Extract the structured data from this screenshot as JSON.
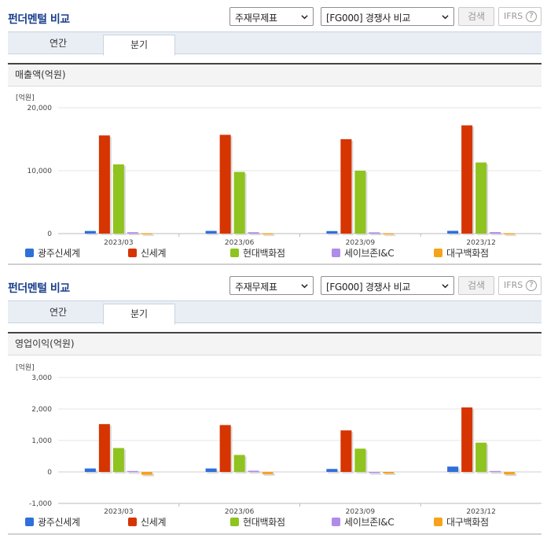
{
  "colors": {
    "title": "#1a3f8c",
    "series": [
      "#2f6fd9",
      "#d63400",
      "#8fc31f",
      "#b28bea",
      "#f6a21a"
    ]
  },
  "sections": [
    {
      "title": "펀더멘털 비교",
      "select_a": "주재무제표",
      "select_b": "[FG000] 경쟁사 비교",
      "search_label": "검색",
      "ifrs_label": "IFRS",
      "ifrs_help": "?",
      "tabs": [
        "연간",
        "분기"
      ],
      "active_tab": "분기",
      "panel_title": "매출액(억원)",
      "chart_data": {
        "type": "bar",
        "title": "매출액(억원)",
        "unit_label": "[억원]",
        "categories": [
          "2023/03",
          "2023/06",
          "2023/09",
          "2023/12"
        ],
        "ylim": [
          0,
          20000
        ],
        "yticks": [
          0,
          10000,
          20000
        ],
        "ytick_labels": [
          "0",
          "10,000",
          "20,000"
        ],
        "series": [
          {
            "name": "광주신세계",
            "values": [
              420,
              430,
              400,
              440
            ]
          },
          {
            "name": "신세계",
            "values": [
              15600,
              15700,
              15000,
              17200
            ]
          },
          {
            "name": "현대백화점",
            "values": [
              11000,
              9800,
              10000,
              11300
            ]
          },
          {
            "name": "세이브존I&C",
            "values": [
              220,
              220,
              200,
              240
            ]
          },
          {
            "name": "대구백화점",
            "values": [
              60,
              50,
              40,
              50
            ]
          }
        ]
      }
    },
    {
      "title": "펀더멘털 비교",
      "select_a": "주재무제표",
      "select_b": "[FG000] 경쟁사 비교",
      "search_label": "검색",
      "ifrs_label": "IFRS",
      "ifrs_help": "?",
      "tabs": [
        "연간",
        "분기"
      ],
      "active_tab": "분기",
      "panel_title": "영업이익(억원)",
      "chart_data": {
        "type": "bar",
        "title": "영업이익(억원)",
        "unit_label": "[억원]",
        "categories": [
          "2023/03",
          "2023/06",
          "2023/09",
          "2023/12"
        ],
        "ylim": [
          -1000,
          3000
        ],
        "yticks": [
          -1000,
          0,
          1000,
          2000,
          3000
        ],
        "ytick_labels": [
          "-1,000",
          "0",
          "1,000",
          "2,000",
          "3,000"
        ],
        "series": [
          {
            "name": "광주신세계",
            "values": [
              110,
              110,
              95,
              170
            ]
          },
          {
            "name": "신세계",
            "values": [
              1520,
              1490,
              1320,
              2050
            ]
          },
          {
            "name": "현대백화점",
            "values": [
              760,
              540,
              740,
              930
            ]
          },
          {
            "name": "세이브존I&C",
            "values": [
              30,
              40,
              0,
              30
            ]
          },
          {
            "name": "대구백화점",
            "values": [
              -90,
              -70,
              -50,
              -80
            ]
          }
        ]
      }
    }
  ]
}
